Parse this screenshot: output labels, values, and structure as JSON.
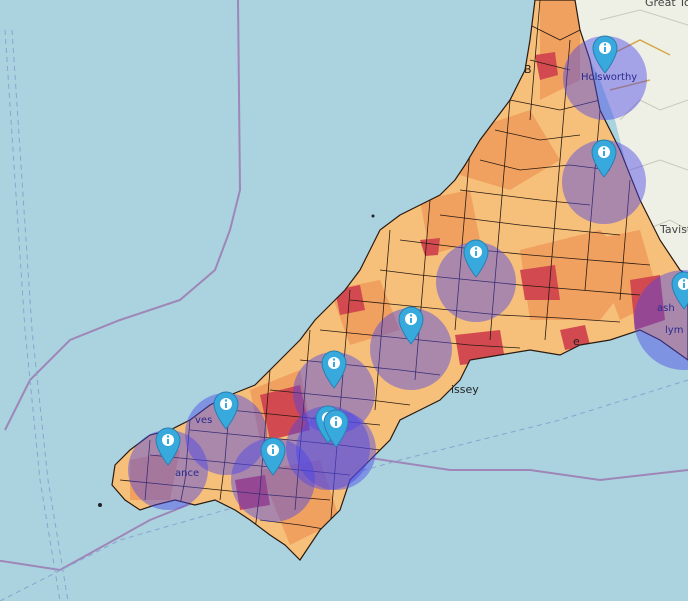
{
  "map": {
    "colors": {
      "sea": "#aad3df",
      "land_outside": "#eef0e6",
      "choropleth_low": "#f6c07a",
      "choropleth_mid": "#f0a15f",
      "choropleth_high": "#d24a4f",
      "boundary": "#2a1a12",
      "circle_fill": "#4b45e8",
      "marker": "#38a9dc"
    },
    "labels": {
      "holsworthy": "Holsworthy",
      "great_torrington": "Great To",
      "bude": "B",
      "tavistock": "Tavist",
      "saltash": "ash",
      "plymouth": "lym",
      "st_ives": "ves",
      "penzance": "ance",
      "mevagissey": "issey",
      "looe": "e"
    },
    "markers": [
      {
        "name": "holsworthy",
        "icon": "info-icon"
      },
      {
        "name": "launceston",
        "icon": "info-icon"
      },
      {
        "name": "bodmin",
        "icon": "info-icon"
      },
      {
        "name": "saltash",
        "icon": "info-icon"
      },
      {
        "name": "st-austell",
        "icon": "info-icon"
      },
      {
        "name": "truro",
        "icon": "info-icon"
      },
      {
        "name": "st-ives",
        "icon": "info-icon"
      },
      {
        "name": "penzance",
        "icon": "info-icon"
      },
      {
        "name": "helston",
        "icon": "info-icon"
      },
      {
        "name": "falmouth",
        "icon": "info-icon"
      },
      {
        "name": "falmouth-2",
        "icon": "info-icon"
      }
    ]
  }
}
